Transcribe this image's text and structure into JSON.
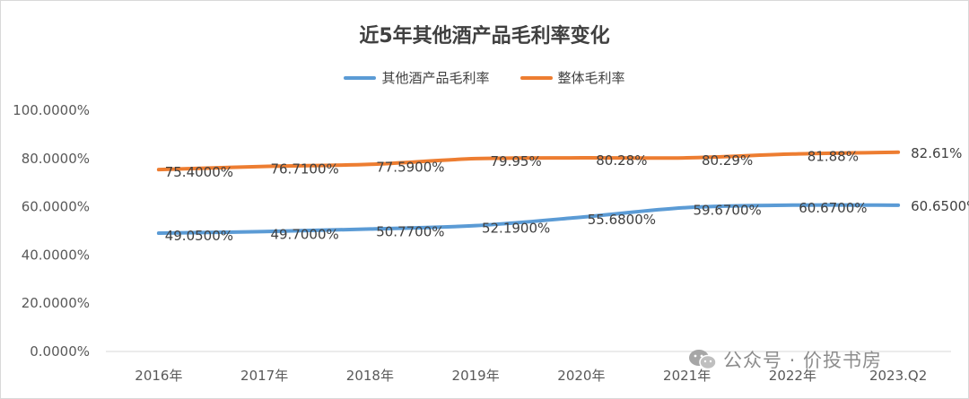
{
  "chart_data": {
    "type": "line",
    "title": "近5年其他酒产品毛利率变化",
    "categories": [
      "2016年",
      "2017年",
      "2018年",
      "2019年",
      "2020年",
      "2021年",
      "2022年",
      "2023.Q2"
    ],
    "ylim": [
      0,
      100
    ],
    "yticks": [
      "0.0000%",
      "20.0000%",
      "40.0000%",
      "60.0000%",
      "80.0000%",
      "100.0000%"
    ],
    "grid": false,
    "legend_position": "top",
    "series": [
      {
        "name": "其他酒产品毛利率",
        "color": "#5b9bd5",
        "values": [
          49.05,
          49.7,
          50.77,
          52.19,
          55.68,
          59.67,
          60.67,
          60.65
        ],
        "labels": [
          "49.0500%",
          "49.7000%",
          "50.7700%",
          "52.1900%",
          "55.6800%",
          "59.6700%",
          "60.6700%",
          "60.6500%"
        ]
      },
      {
        "name": "整体毛利率",
        "color": "#ed7d31",
        "values": [
          75.4,
          76.71,
          77.59,
          79.95,
          80.28,
          80.29,
          81.88,
          82.61
        ],
        "labels": [
          "75.4000%",
          "76.7100%",
          "77.5900%",
          "79.95%",
          "80.28%",
          "80.29%",
          "81.88%",
          "82.61%"
        ]
      }
    ]
  },
  "watermark": {
    "text": "公众号 · 价投书房",
    "icon": "wechat-icon"
  }
}
